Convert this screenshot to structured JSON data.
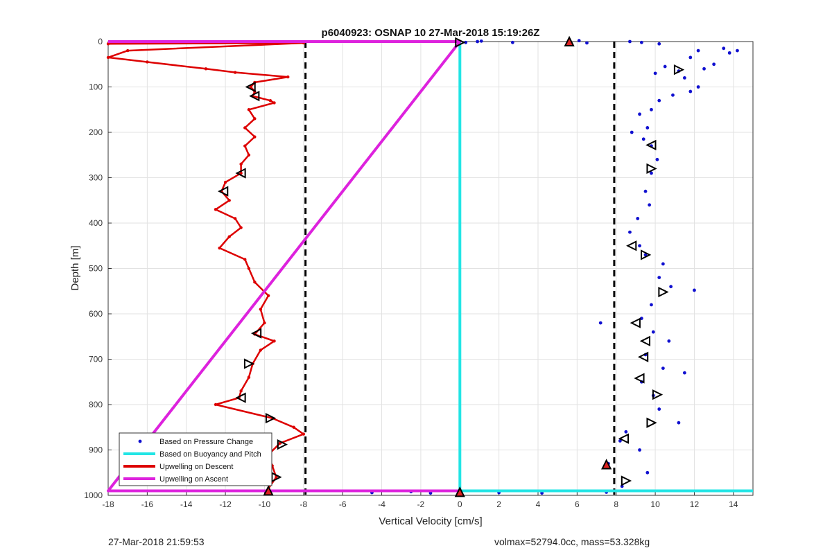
{
  "chart_data": {
    "type": "scatter",
    "title": "p6040923: OSNAP 10 27-Mar-2018 15:19:26Z",
    "xlabel": "Vertical Velocity [cm/s]",
    "ylabel": "Depth [m]",
    "xlim": [
      -18,
      15
    ],
    "ylim": [
      0,
      1000
    ],
    "y_reversed": true,
    "grid": true,
    "xticks": [
      -18,
      -16,
      -14,
      -12,
      -10,
      -8,
      -6,
      -4,
      -2,
      0,
      2,
      4,
      6,
      8,
      10,
      12,
      14
    ],
    "yticks": [
      0,
      100,
      200,
      300,
      400,
      500,
      600,
      700,
      800,
      900,
      1000
    ],
    "legend_position": "bottom-left",
    "legend": [
      {
        "name": "Based on Pressure Change",
        "color": "#1010d0",
        "style": "dot"
      },
      {
        "name": "Based on Buoyancy and Pitch",
        "color": "#22e5e5",
        "style": "line"
      },
      {
        "name": "Upwelling on Descent",
        "color": "#dd0000",
        "style": "line"
      },
      {
        "name": "Upwelling on Ascent",
        "color": "#dd22dd",
        "style": "line"
      }
    ],
    "series": [
      {
        "name": "Upwelling on Descent",
        "kind": "line",
        "color": "#dd0000",
        "points": [
          [
            -18,
            5
          ],
          [
            -8,
            3
          ],
          [
            -17,
            20
          ],
          [
            -18,
            35
          ],
          [
            -16,
            45
          ],
          [
            -13,
            60
          ],
          [
            -11.5,
            68
          ],
          [
            -8.8,
            78
          ],
          [
            -10.5,
            90
          ],
          [
            -10.7,
            100
          ],
          [
            -10.5,
            110
          ],
          [
            -10.6,
            120
          ],
          [
            -9.7,
            130
          ],
          [
            -9.5,
            135
          ],
          [
            -10.8,
            150
          ],
          [
            -10.5,
            170
          ],
          [
            -11,
            190
          ],
          [
            -10.5,
            210
          ],
          [
            -11,
            230
          ],
          [
            -10.8,
            250
          ],
          [
            -11.2,
            270
          ],
          [
            -11.2,
            290
          ],
          [
            -12,
            310
          ],
          [
            -12.2,
            330
          ],
          [
            -11.8,
            350
          ],
          [
            -12.5,
            370
          ],
          [
            -11.5,
            390
          ],
          [
            -11.2,
            410
          ],
          [
            -11.8,
            430
          ],
          [
            -12.3,
            455
          ],
          [
            -11,
            480
          ],
          [
            -10.8,
            500
          ],
          [
            -10.5,
            530
          ],
          [
            -9.8,
            560
          ],
          [
            -10.2,
            590
          ],
          [
            -10,
            620
          ],
          [
            -10.5,
            645
          ],
          [
            -9.5,
            660
          ],
          [
            -10.2,
            680
          ],
          [
            -10.6,
            710
          ],
          [
            -10.8,
            740
          ],
          [
            -11.2,
            770
          ],
          [
            -11.3,
            785
          ],
          [
            -12.5,
            800
          ],
          [
            -9.6,
            830
          ],
          [
            -8.5,
            850
          ],
          [
            -8,
            865
          ],
          [
            -9.2,
            885
          ],
          [
            -9.8,
            910
          ],
          [
            -9.6,
            935
          ],
          [
            -9.4,
            960
          ],
          [
            -9.8,
            985
          ]
        ]
      },
      {
        "name": "Based on Pressure Change",
        "kind": "scatter",
        "color": "#1010d0",
        "points": [
          [
            0.3,
            2
          ],
          [
            0.9,
            0
          ],
          [
            1.1,
            -1
          ],
          [
            2.7,
            2
          ],
          [
            6.1,
            -2
          ],
          [
            6.5,
            3
          ],
          [
            8.7,
            0
          ],
          [
            9.3,
            2
          ],
          [
            10.2,
            5
          ],
          [
            11.8,
            35
          ],
          [
            12.2,
            20
          ],
          [
            13.5,
            15
          ],
          [
            13.8,
            25
          ],
          [
            14.2,
            20
          ],
          [
            13,
            50
          ],
          [
            12.5,
            60
          ],
          [
            11.2,
            65
          ],
          [
            10.5,
            55
          ],
          [
            10,
            70
          ],
          [
            11.5,
            80
          ],
          [
            12.2,
            100
          ],
          [
            11.8,
            110
          ],
          [
            10.9,
            118
          ],
          [
            10.2,
            130
          ],
          [
            9.8,
            150
          ],
          [
            9.2,
            160
          ],
          [
            9.6,
            190
          ],
          [
            8.8,
            200
          ],
          [
            9.4,
            215
          ],
          [
            9.8,
            230
          ],
          [
            10.1,
            260
          ],
          [
            9.8,
            290
          ],
          [
            9.5,
            330
          ],
          [
            9.7,
            360
          ],
          [
            9.1,
            390
          ],
          [
            8.7,
            420
          ],
          [
            9.2,
            450
          ],
          [
            9.5,
            470
          ],
          [
            10.4,
            490
          ],
          [
            10.2,
            520
          ],
          [
            10.8,
            540
          ],
          [
            12,
            548
          ],
          [
            9.8,
            580
          ],
          [
            9.3,
            610
          ],
          [
            7.2,
            620
          ],
          [
            9.9,
            640
          ],
          [
            10.7,
            660
          ],
          [
            9.5,
            690
          ],
          [
            10.4,
            720
          ],
          [
            11.5,
            730
          ],
          [
            9.3,
            750
          ],
          [
            9.9,
            780
          ],
          [
            10.2,
            810
          ],
          [
            11.2,
            840
          ],
          [
            8.5,
            860
          ],
          [
            8.2,
            880
          ],
          [
            9.2,
            900
          ],
          [
            7.6,
            930
          ],
          [
            9.6,
            950
          ],
          [
            8.3,
            980
          ],
          [
            7.5,
            993
          ],
          [
            -1.5,
            995
          ],
          [
            -2.5,
            992
          ],
          [
            -4.5,
            994
          ],
          [
            2,
            994
          ],
          [
            4.2,
            995
          ]
        ]
      },
      {
        "name": "Based on Buoyancy and Pitch",
        "kind": "line",
        "color": "#22e5e5",
        "points": [
          [
            0,
            0
          ],
          [
            0,
            990
          ],
          [
            15,
            990
          ]
        ]
      },
      {
        "name": "Upwelling on Ascent",
        "kind": "line",
        "color": "#dd22dd",
        "points": [
          [
            -18,
            0
          ],
          [
            0,
            0
          ],
          [
            -18,
            990
          ],
          [
            0,
            990
          ]
        ]
      }
    ],
    "reference_lines": [
      {
        "axis": "x",
        "value": -7.9,
        "style": "dashed",
        "color": "#000000"
      },
      {
        "axis": "x",
        "value": 7.9,
        "style": "dashed",
        "color": "#000000"
      }
    ],
    "triangle_markers": [
      {
        "x": -10.7,
        "y": 100,
        "dir": "left"
      },
      {
        "x": -10.5,
        "y": 120,
        "dir": "left"
      },
      {
        "x": -11.2,
        "y": 290,
        "dir": "left"
      },
      {
        "x": -12.1,
        "y": 330,
        "dir": "left"
      },
      {
        "x": -10.4,
        "y": 643,
        "dir": "left"
      },
      {
        "x": -10.8,
        "y": 710,
        "dir": "right"
      },
      {
        "x": -11.2,
        "y": 785,
        "dir": "left"
      },
      {
        "x": -9.7,
        "y": 830,
        "dir": "right"
      },
      {
        "x": -9.1,
        "y": 888,
        "dir": "right"
      },
      {
        "x": -9.4,
        "y": 960,
        "dir": "right"
      },
      {
        "x": -9.8,
        "y": 990,
        "dir": "up"
      },
      {
        "x": 0,
        "y": 2,
        "dir": "right"
      },
      {
        "x": 0,
        "y": 993,
        "dir": "up"
      },
      {
        "x": 5.6,
        "y": 0,
        "dir": "up"
      },
      {
        "x": 11.2,
        "y": 62,
        "dir": "right"
      },
      {
        "x": 9.8,
        "y": 228,
        "dir": "left"
      },
      {
        "x": 9.8,
        "y": 280,
        "dir": "right"
      },
      {
        "x": 8.8,
        "y": 450,
        "dir": "left"
      },
      {
        "x": 9.5,
        "y": 470,
        "dir": "right"
      },
      {
        "x": 10.4,
        "y": 552,
        "dir": "right"
      },
      {
        "x": 9,
        "y": 620,
        "dir": "left"
      },
      {
        "x": 9.5,
        "y": 660,
        "dir": "left"
      },
      {
        "x": 9.4,
        "y": 695,
        "dir": "left"
      },
      {
        "x": 9.2,
        "y": 742,
        "dir": "left"
      },
      {
        "x": 10.1,
        "y": 778,
        "dir": "right"
      },
      {
        "x": 9.8,
        "y": 840,
        "dir": "right"
      },
      {
        "x": 8.4,
        "y": 875,
        "dir": "left"
      },
      {
        "x": 7.5,
        "y": 932,
        "dir": "up"
      },
      {
        "x": 8.5,
        "y": 968,
        "dir": "right"
      }
    ]
  },
  "footer": {
    "timestamp": "27-Mar-2018 21:59:53",
    "volmax_mass": "volmax=52794.0cc, mass=53.328kg"
  }
}
